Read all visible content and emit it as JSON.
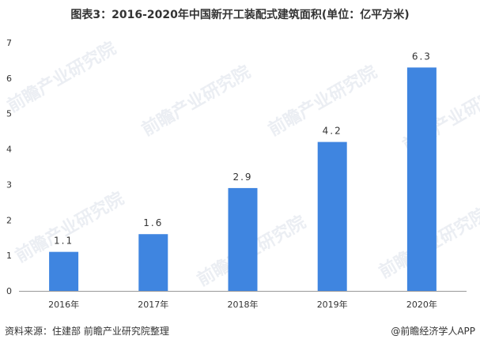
{
  "title": "图表3：2016-2020年中国新开工装配式建筑面积(单位：亿平方米)",
  "source": "资料来源：住建部 前瞻产业研究院整理",
  "brand": "@前瞻经济学人APP",
  "watermark": "前瞻产业研究院",
  "colors": {
    "bar": "#3f85e0",
    "axis": "#999999",
    "text": "#333333"
  },
  "chart_data": {
    "type": "bar",
    "categories": [
      "2016年",
      "2017年",
      "2018年",
      "2019年",
      "2020年"
    ],
    "values": [
      1.1,
      1.6,
      2.9,
      4.2,
      6.3
    ],
    "value_labels": [
      "1.1",
      "1.6",
      "2.9",
      "4.2",
      "6.3"
    ],
    "y_ticks": [
      "0",
      "1",
      "2",
      "3",
      "4",
      "5",
      "6",
      "7"
    ],
    "ylim": [
      0,
      7
    ],
    "grid": false,
    "legend": "none"
  }
}
